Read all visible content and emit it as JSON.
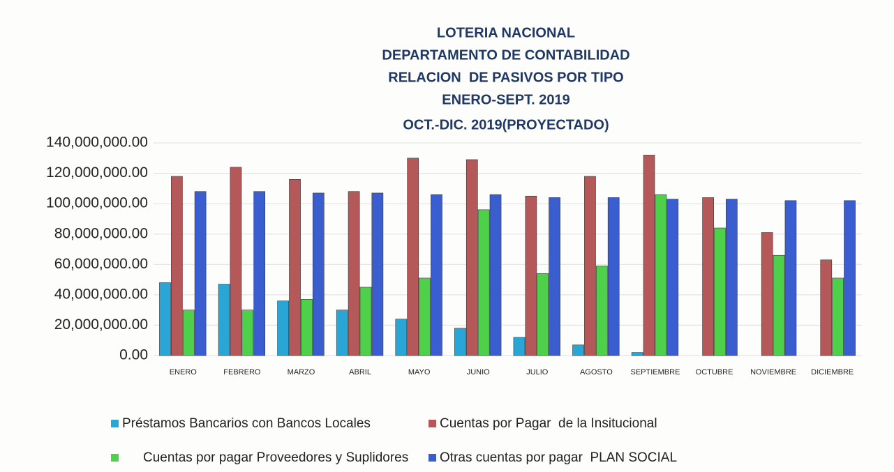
{
  "chart_data": {
    "type": "bar",
    "title": [
      "LOTERIA NACIONAL",
      "DEPARTAMENTO DE CONTABILIDAD",
      "RELACION  DE PASIVOS POR TIPO",
      "ENERO-SEPT. 2019",
      "OCT.-DIC. 2019(PROYECTADO)"
    ],
    "categories": [
      "ENERO",
      "FEBRERO",
      "MARZO",
      "ABRIL",
      "MAYO",
      "JUNIO",
      "JULIO",
      "AGOSTO",
      "SEPTIEMBRE",
      "OCTUBRE",
      "NOVIEMBRE",
      "DICIEMBRE"
    ],
    "series": [
      {
        "name": "Préstamos Bancarios con Bancos Locales",
        "color": "#2aa6d6",
        "values": [
          48000000,
          47000000,
          36000000,
          30000000,
          24000000,
          18000000,
          12000000,
          7000000,
          2000000,
          0,
          0,
          0
        ]
      },
      {
        "name": "Cuentas por Pagar  de la Insitucional",
        "color": "#b4585a",
        "values": [
          118000000,
          124000000,
          116000000,
          108000000,
          130000000,
          129000000,
          105000000,
          118000000,
          132000000,
          104000000,
          81000000,
          63000000
        ]
      },
      {
        "name": "Cuentas por pagar Proveedores y Suplidores",
        "color": "#4fd04a",
        "values": [
          30000000,
          30000000,
          37000000,
          45000000,
          51000000,
          96000000,
          54000000,
          59000000,
          106000000,
          84000000,
          66000000,
          51000000
        ]
      },
      {
        "name": "Otras cuentas por pagar  PLAN SOCIAL",
        "color": "#3a5ecf",
        "values": [
          108000000,
          108000000,
          107000000,
          107000000,
          106000000,
          106000000,
          104000000,
          104000000,
          103000000,
          103000000,
          102000000,
          102000000
        ]
      }
    ],
    "ylim": [
      0,
      140000000
    ],
    "yticks": [
      {
        "value": 0,
        "label": "0.00"
      },
      {
        "value": 20000000,
        "label": "20,000,000.00"
      },
      {
        "value": 40000000,
        "label": "40,000,000.00"
      },
      {
        "value": 60000000,
        "label": "60,000,000.00"
      },
      {
        "value": 80000000,
        "label": "80,000,000.00"
      },
      {
        "value": 100000000,
        "label": "100,000,000.00"
      },
      {
        "value": 120000000,
        "label": "120,000,000.00"
      },
      {
        "value": 140000000,
        "label": "140,000,000.00"
      }
    ],
    "grid": true
  }
}
